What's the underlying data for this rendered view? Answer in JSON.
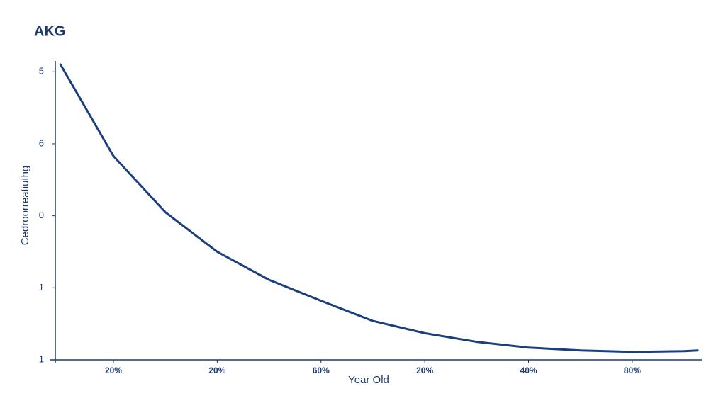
{
  "chart_data": {
    "type": "line",
    "title": "AKG",
    "xlabel": "Year Old",
    "ylabel": "Cedroorreatiuthg",
    "color": "#1b3f7d",
    "x": [
      -0.51,
      0,
      0.5,
      1,
      1.5,
      2,
      2.5,
      3,
      3.5,
      4,
      4.5,
      5,
      5.5,
      5.63
    ],
    "values": [
      4.1,
      2.83,
      2.05,
      1.5,
      1.11,
      0.82,
      0.54,
      0.37,
      0.25,
      0.17,
      0.13,
      0.11,
      0.12,
      0.13
    ],
    "xlim": [
      -0.56,
      5.67
    ],
    "xticks": [
      {
        "value": 0,
        "label": "20%"
      },
      {
        "value": 1,
        "label": "20%"
      },
      {
        "value": 2,
        "label": "60%"
      },
      {
        "value": 3,
        "label": "20%"
      },
      {
        "value": 4,
        "label": "40%"
      },
      {
        "value": 5,
        "label": "80%"
      }
    ],
    "ylim": [
      0,
      4.15
    ],
    "yticks": [
      {
        "value": 4,
        "label": "5"
      },
      {
        "value": 3,
        "label": "6"
      },
      {
        "value": 2,
        "label": "0"
      },
      {
        "value": 1,
        "label": "1"
      },
      {
        "value": 0,
        "label": "1"
      }
    ]
  }
}
